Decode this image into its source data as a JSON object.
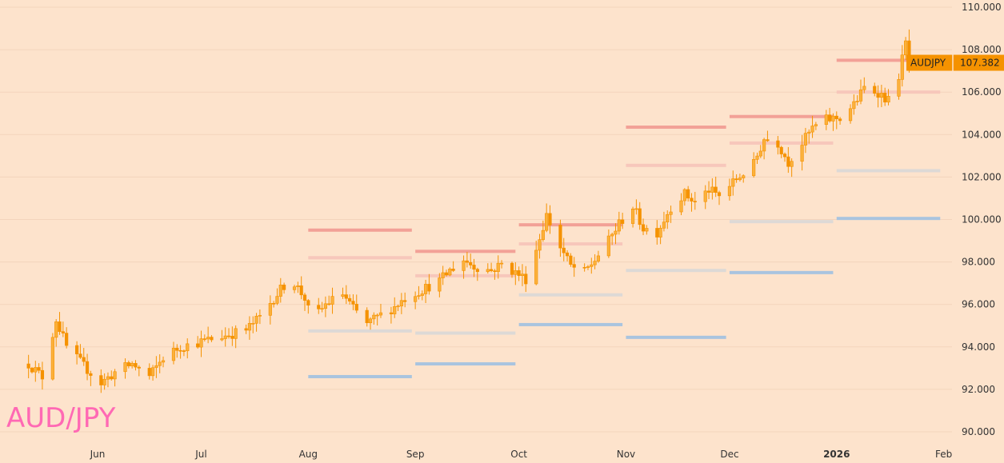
{
  "pair_title": "AUD/JPY",
  "colors": {
    "background": "#fde3cc",
    "candle_body": "#fbb13c",
    "candle_wick": "#f59200",
    "badge": "#f59200",
    "pivot_r2": "#f2a197",
    "pivot_r1": "#f7c7bb",
    "pivot_p": "#ddd9d6",
    "pivot_s1": "#a9c4df",
    "title": "#ff69b4",
    "grid": "#f3d4bc"
  },
  "price_badge": {
    "symbol": "AUDJPY",
    "value": "107.382"
  },
  "chart_data": {
    "type": "candlestick",
    "title": "AUD/JPY",
    "ylim": [
      89.5,
      110.2
    ],
    "y_ticks": [
      "110.000",
      "108.000",
      "106.000",
      "104.000",
      "102.000",
      "100.000",
      "98.000",
      "96.000",
      "94.000",
      "92.000",
      "90.000"
    ],
    "x_labels": [
      {
        "label": "Jun",
        "date": "2025-06-01",
        "bold": false
      },
      {
        "label": "Jul",
        "date": "2025-07-01",
        "bold": false
      },
      {
        "label": "Aug",
        "date": "2025-08-01",
        "bold": false
      },
      {
        "label": "Sep",
        "date": "2025-09-01",
        "bold": false
      },
      {
        "label": "Oct",
        "date": "2025-10-01",
        "bold": false
      },
      {
        "label": "Nov",
        "date": "2025-11-01",
        "bold": false
      },
      {
        "label": "Dec",
        "date": "2025-12-01",
        "bold": false
      },
      {
        "label": "2026",
        "date": "2026-01-01",
        "bold": true
      },
      {
        "label": "Feb",
        "date": "2026-02-01",
        "bold": false
      }
    ],
    "last_price": 107.382,
    "price_path": [
      [
        "2025-05-12",
        93.2
      ],
      [
        "2025-05-16",
        92.6
      ],
      [
        "2025-05-20",
        95.3
      ],
      [
        "2025-05-23",
        94.0
      ],
      [
        "2025-05-28",
        93.1
      ],
      [
        "2025-06-02",
        92.3
      ],
      [
        "2025-06-06",
        92.8
      ],
      [
        "2025-06-11",
        93.2
      ],
      [
        "2025-06-16",
        92.6
      ],
      [
        "2025-06-20",
        93.5
      ],
      [
        "2025-06-25",
        94.0
      ],
      [
        "2025-06-30",
        94.2
      ],
      [
        "2025-07-07",
        94.5
      ],
      [
        "2025-07-14",
        94.8
      ],
      [
        "2025-07-18",
        95.4
      ],
      [
        "2025-07-22",
        96.3
      ],
      [
        "2025-07-25",
        96.9
      ],
      [
        "2025-07-28",
        97.0
      ],
      [
        "2025-07-31",
        96.3
      ],
      [
        "2025-08-02",
        95.2
      ],
      [
        "2025-08-06",
        96.0
      ],
      [
        "2025-08-11",
        96.5
      ],
      [
        "2025-08-14",
        95.8
      ],
      [
        "2025-08-18",
        95.1
      ],
      [
        "2025-08-21",
        95.4
      ],
      [
        "2025-08-26",
        95.9
      ],
      [
        "2025-08-29",
        96.3
      ],
      [
        "2025-09-03",
        96.7
      ],
      [
        "2025-09-08",
        97.1
      ],
      [
        "2025-09-11",
        97.6
      ],
      [
        "2025-09-15",
        98.1
      ],
      [
        "2025-09-18",
        97.8
      ],
      [
        "2025-09-23",
        97.6
      ],
      [
        "2025-09-26",
        97.9
      ],
      [
        "2025-09-30",
        97.5
      ],
      [
        "2025-10-03",
        97.2
      ],
      [
        "2025-10-06",
        98.6
      ],
      [
        "2025-10-09",
        100.2
      ],
      [
        "2025-10-13",
        98.7
      ],
      [
        "2025-10-16",
        97.8
      ],
      [
        "2025-10-20",
        97.5
      ],
      [
        "2025-10-23",
        98.1
      ],
      [
        "2025-10-27",
        99.0
      ],
      [
        "2025-10-30",
        99.8
      ],
      [
        "2025-11-03",
        100.6
      ],
      [
        "2025-11-06",
        99.6
      ],
      [
        "2025-11-10",
        99.4
      ],
      [
        "2025-11-14",
        100.6
      ],
      [
        "2025-11-18",
        101.2
      ],
      [
        "2025-11-21",
        100.8
      ],
      [
        "2025-11-25",
        101.4
      ],
      [
        "2025-11-28",
        101.1
      ],
      [
        "2025-12-03",
        101.9
      ],
      [
        "2025-12-08",
        102.6
      ],
      [
        "2025-12-11",
        103.8
      ],
      [
        "2025-12-15",
        103.6
      ],
      [
        "2025-12-18",
        102.7
      ],
      [
        "2025-12-22",
        103.6
      ],
      [
        "2025-12-25",
        104.3
      ],
      [
        "2025-12-29",
        104.7
      ],
      [
        "2026-01-02",
        104.8
      ],
      [
        "2026-01-06",
        105.4
      ],
      [
        "2026-01-09",
        106.2
      ],
      [
        "2026-01-13",
        106.0
      ],
      [
        "2026-01-16",
        105.6
      ],
      [
        "2026-01-19",
        106.8
      ],
      [
        "2026-01-21",
        108.3
      ],
      [
        "2026-01-22",
        107.4
      ]
    ],
    "pivot_levels": [
      {
        "start": "2025-08-01",
        "end": "2025-08-31",
        "r2": 99.5,
        "r1": 98.2,
        "p": 94.75,
        "s1": 92.6
      },
      {
        "start": "2025-09-01",
        "end": "2025-09-30",
        "r2": 98.5,
        "r1": 97.35,
        "p": 94.65,
        "s1": 93.2
      },
      {
        "start": "2025-10-01",
        "end": "2025-10-31",
        "r2": 99.75,
        "r1": 98.85,
        "p": 96.45,
        "s1": 95.05
      },
      {
        "start": "2025-11-01",
        "end": "2025-11-30",
        "r2": 104.35,
        "r1": 102.55,
        "p": 97.6,
        "s1": 94.45
      },
      {
        "start": "2025-12-01",
        "end": "2025-12-31",
        "r2": 104.85,
        "r1": 103.6,
        "p": 99.9,
        "s1": 97.5
      },
      {
        "start": "2026-01-01",
        "end": "2026-01-31",
        "r2": 107.5,
        "r1": 106.0,
        "p": 102.3,
        "s1": 100.05
      }
    ]
  }
}
